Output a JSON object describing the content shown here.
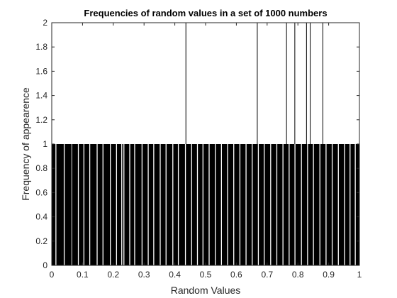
{
  "chart_data": {
    "type": "bar",
    "title": "Frequencies of random values in a set of 1000 numbers",
    "xlabel": "Random Values",
    "ylabel": "Frequency of appearence",
    "xlim": [
      0,
      1
    ],
    "ylim": [
      0,
      2
    ],
    "x_ticks": [
      0,
      0.1,
      0.2,
      0.3,
      0.4,
      0.5,
      0.6,
      0.7,
      0.8,
      0.9,
      1
    ],
    "x_tick_labels": [
      "0",
      "0.1",
      "0.2",
      "0.3",
      "0.4",
      "0.5",
      "0.6",
      "0.7",
      "0.8",
      "0.9",
      "1"
    ],
    "y_ticks": [
      0,
      0.2,
      0.4,
      0.6,
      0.8,
      1,
      1.2,
      1.4,
      1.6,
      1.8,
      2
    ],
    "y_tick_labels": [
      "0",
      "0.2",
      "0.4",
      "0.6",
      "0.8",
      "1",
      "1.2",
      "1.4",
      "1.6",
      "1.8",
      "2"
    ],
    "bar_color": "#000000",
    "grid": false,
    "bins_count1": [
      [
        0.0,
        0.012
      ],
      [
        0.015,
        0.039
      ],
      [
        0.042,
        0.064
      ],
      [
        0.066,
        0.085
      ],
      [
        0.088,
        0.103
      ],
      [
        0.106,
        0.122
      ],
      [
        0.125,
        0.146
      ],
      [
        0.149,
        0.165
      ],
      [
        0.168,
        0.189
      ],
      [
        0.192,
        0.209
      ],
      [
        0.212,
        0.226
      ],
      [
        0.229,
        0.233
      ],
      [
        0.236,
        0.252
      ],
      [
        0.255,
        0.268
      ],
      [
        0.271,
        0.292
      ],
      [
        0.295,
        0.312
      ],
      [
        0.315,
        0.33
      ],
      [
        0.333,
        0.351
      ],
      [
        0.354,
        0.37
      ],
      [
        0.373,
        0.392
      ],
      [
        0.395,
        0.41
      ],
      [
        0.413,
        0.433
      ],
      [
        0.436,
        0.453
      ],
      [
        0.456,
        0.472
      ],
      [
        0.475,
        0.49
      ],
      [
        0.493,
        0.51
      ],
      [
        0.513,
        0.53
      ],
      [
        0.533,
        0.55
      ],
      [
        0.553,
        0.57
      ],
      [
        0.573,
        0.59
      ],
      [
        0.593,
        0.61
      ],
      [
        0.613,
        0.63
      ],
      [
        0.633,
        0.65
      ],
      [
        0.653,
        0.67
      ],
      [
        0.673,
        0.689
      ],
      [
        0.692,
        0.71
      ],
      [
        0.713,
        0.73
      ],
      [
        0.733,
        0.75
      ],
      [
        0.753,
        0.77
      ],
      [
        0.773,
        0.789
      ],
      [
        0.792,
        0.81
      ],
      [
        0.813,
        0.83
      ],
      [
        0.833,
        0.849
      ],
      [
        0.852,
        0.87
      ],
      [
        0.873,
        0.89
      ],
      [
        0.893,
        0.91
      ],
      [
        0.913,
        0.93
      ],
      [
        0.933,
        0.95
      ],
      [
        0.953,
        0.968
      ],
      [
        0.971,
        0.985
      ],
      [
        0.988,
        1.0
      ]
    ],
    "bins_count2_x": [
      0.436,
      0.668,
      0.763,
      0.79,
      0.828,
      0.84,
      0.881
    ]
  }
}
